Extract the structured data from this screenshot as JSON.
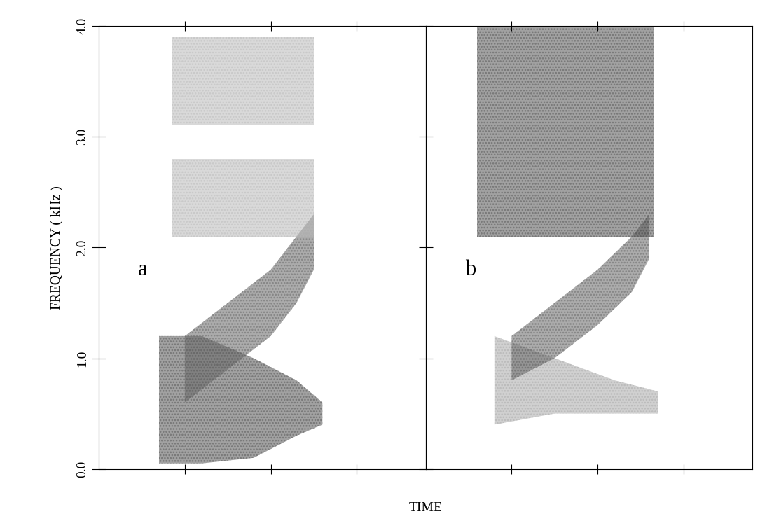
{
  "chart_data": [
    {
      "type": "spectrogram",
      "ylabel": "FREQUENCY ( kHz )",
      "annotations": [
        "a"
      ],
      "xlim": [
        0,
        3.8
      ],
      "xticks": [
        1,
        2,
        3
      ],
      "ylim": [
        0,
        4.0
      ],
      "yticks": [
        {
          "value": 0,
          "label": "0.0"
        },
        {
          "value": 1,
          "label": "1.0"
        },
        {
          "value": 2,
          "label": "2.0"
        },
        {
          "value": 3,
          "label": "3.0"
        },
        {
          "value": 4,
          "label": "4.0"
        }
      ],
      "tick_labels": "y",
      "series": [
        {
          "color": "#555555",
          "x": [
            0.7,
            1.2,
            1.8,
            2.3,
            2.6
          ],
          "lower": [
            0.05,
            0.05,
            0.1,
            0.3,
            0.4
          ],
          "upper": [
            1.2,
            1.2,
            1.0,
            0.8,
            0.6
          ]
        },
        {
          "color": "#666666",
          "x": [
            1.0,
            1.5,
            2.0,
            2.3,
            2.5
          ],
          "lower": [
            0.6,
            0.9,
            1.2,
            1.5,
            1.8
          ],
          "upper": [
            1.2,
            1.5,
            1.8,
            2.1,
            2.3
          ]
        },
        {
          "color": "#bbbbbb",
          "x": [
            0.85,
            1.5,
            2.5
          ],
          "lower": [
            2.1,
            2.1,
            2.1
          ],
          "upper": [
            2.8,
            2.8,
            2.8
          ]
        },
        {
          "color": "#bbbbbb",
          "x": [
            0.85,
            1.5,
            2.5
          ],
          "lower": [
            3.1,
            3.1,
            3.1
          ],
          "upper": [
            3.9,
            3.9,
            3.9
          ]
        }
      ]
    },
    {
      "type": "spectrogram",
      "annotations": [
        "b"
      ],
      "xlim": [
        0,
        3.8
      ],
      "xticks": [
        1,
        2,
        3
      ],
      "ylim": [
        0,
        4.0
      ],
      "yticks": [
        0,
        1,
        2,
        3,
        4
      ],
      "tick_labels": false,
      "series": [
        {
          "color": "#aaaaaa",
          "x": [
            0.8,
            1.5,
            2.2,
            2.7
          ],
          "lower": [
            0.4,
            0.5,
            0.5,
            0.5
          ],
          "upper": [
            1.2,
            1.0,
            0.8,
            0.7
          ]
        },
        {
          "color": "#666666",
          "x": [
            1.0,
            1.5,
            2.0,
            2.4,
            2.6
          ],
          "lower": [
            0.8,
            1.0,
            1.3,
            1.6,
            1.9
          ],
          "upper": [
            1.2,
            1.5,
            1.8,
            2.1,
            2.3
          ]
        },
        {
          "color": "#555555",
          "x": [
            0.6,
            1.5,
            2.65
          ],
          "lower": [
            2.1,
            2.1,
            2.1
          ],
          "upper": [
            4.0,
            4.0,
            4.0
          ]
        }
      ]
    }
  ],
  "xlabel": "TIME"
}
